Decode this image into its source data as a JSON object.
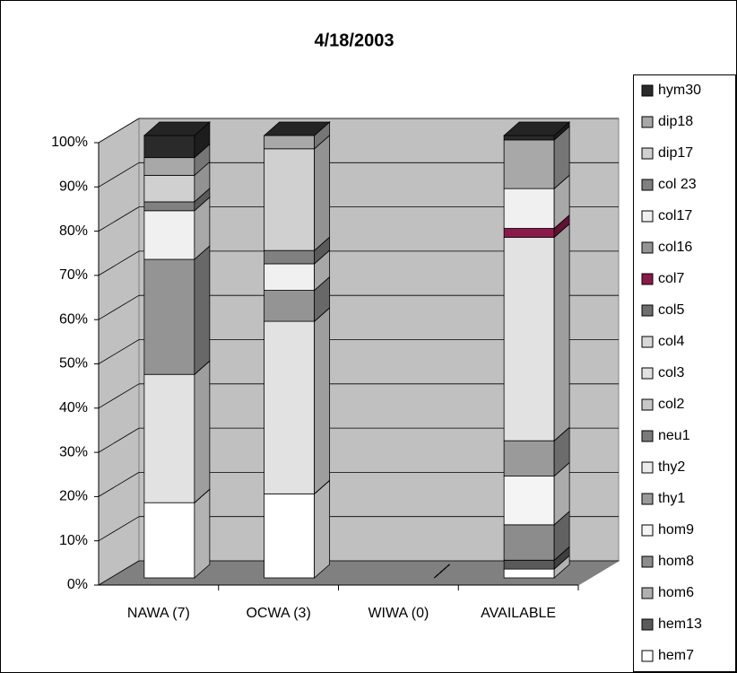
{
  "chart_data": {
    "type": "bar",
    "stacked": true,
    "title": "4/18/2003",
    "categories": [
      "NAWA (7)",
      "OCWA (3)",
      "WIWA (0)",
      "AVAILABLE"
    ],
    "series": [
      {
        "name": "hem7",
        "color": "#ffffff",
        "values": [
          17,
          19,
          0,
          2
        ]
      },
      {
        "name": "hem13",
        "color": "#5a5a5a",
        "values": [
          0,
          0,
          0,
          2
        ]
      },
      {
        "name": "hom6",
        "color": "#b0b0b0",
        "values": [
          0,
          0,
          0,
          0
        ]
      },
      {
        "name": "hom8",
        "color": "#8c8c8c",
        "values": [
          0,
          0,
          0,
          8
        ]
      },
      {
        "name": "hom9",
        "color": "#f4f4f4",
        "values": [
          0,
          0,
          0,
          11
        ]
      },
      {
        "name": "thy1",
        "color": "#9a9a9a",
        "values": [
          0,
          0,
          0,
          8
        ]
      },
      {
        "name": "thy2",
        "color": "#ebebeb",
        "values": [
          0,
          0,
          0,
          0
        ]
      },
      {
        "name": "neu1",
        "color": "#7a7a7a",
        "values": [
          0,
          0,
          0,
          0
        ]
      },
      {
        "name": "col2",
        "color": "#c8c8c8",
        "values": [
          0,
          0,
          0,
          0
        ]
      },
      {
        "name": "col3",
        "color": "#e2e2e2",
        "values": [
          29,
          39,
          0,
          46
        ]
      },
      {
        "name": "col4",
        "color": "#d8d8d8",
        "values": [
          0,
          0,
          0,
          0
        ]
      },
      {
        "name": "col5",
        "color": "#6e6e6e",
        "values": [
          0,
          0,
          0,
          0
        ]
      },
      {
        "name": "col7",
        "color": "#8b1a4a",
        "values": [
          0,
          0,
          0,
          2
        ]
      },
      {
        "name": "col16",
        "color": "#949494",
        "values": [
          26,
          7,
          0,
          0
        ]
      },
      {
        "name": "col17",
        "color": "#f0f0f0",
        "values": [
          11,
          6,
          0,
          9
        ]
      },
      {
        "name": "col 23",
        "color": "#808080",
        "values": [
          2,
          3,
          0,
          0
        ]
      },
      {
        "name": "dip17",
        "color": "#d0d0d0",
        "values": [
          6,
          23,
          0,
          0
        ]
      },
      {
        "name": "dip18",
        "color": "#a8a8a8",
        "values": [
          4,
          3,
          0,
          11
        ]
      },
      {
        "name": "hym30",
        "color": "#2a2a2a",
        "values": [
          5,
          0,
          0,
          1
        ]
      }
    ],
    "ylim": [
      0,
      100
    ],
    "yticks": [
      {
        "value": 0,
        "label": "0%"
      },
      {
        "value": 10,
        "label": "10%"
      },
      {
        "value": 20,
        "label": "20%"
      },
      {
        "value": 30,
        "label": "30%"
      },
      {
        "value": 40,
        "label": "40%"
      },
      {
        "value": 50,
        "label": "50%"
      },
      {
        "value": 60,
        "label": "60%"
      },
      {
        "value": 70,
        "label": "70%"
      },
      {
        "value": 80,
        "label": "80%"
      },
      {
        "value": 90,
        "label": "90%"
      },
      {
        "value": 100,
        "label": "100%"
      }
    ],
    "grid": true,
    "legend": "right"
  }
}
